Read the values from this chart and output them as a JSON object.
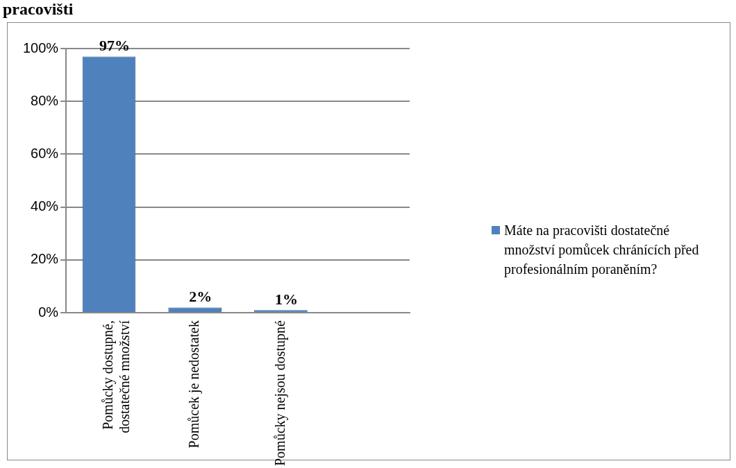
{
  "chart_data": {
    "type": "bar",
    "title": "pracovišti",
    "categories": [
      "Pomůcky dostupné, dostatečné množství",
      "Pomůcek je nedostatek",
      "Pomůcky nejsou dostupné",
      null
    ],
    "series": [
      {
        "name": "Máte na pracovišti dostatečné množství pomůcek chránících před profesionálním poraněním?",
        "color": "#4f81bd",
        "values": [
          97,
          2,
          1,
          null
        ],
        "value_labels": [
          "97%",
          "2%",
          "1%",
          null
        ]
      }
    ],
    "ylim": [
      0,
      100
    ],
    "yticks": [
      {
        "value": 0,
        "label": "0%"
      },
      {
        "value": 20,
        "label": "20%"
      },
      {
        "value": 40,
        "label": "40%"
      },
      {
        "value": 60,
        "label": "60%"
      },
      {
        "value": 80,
        "label": "80%"
      },
      {
        "value": 100,
        "label": "100%"
      }
    ],
    "grid": "y",
    "legend": "right"
  }
}
